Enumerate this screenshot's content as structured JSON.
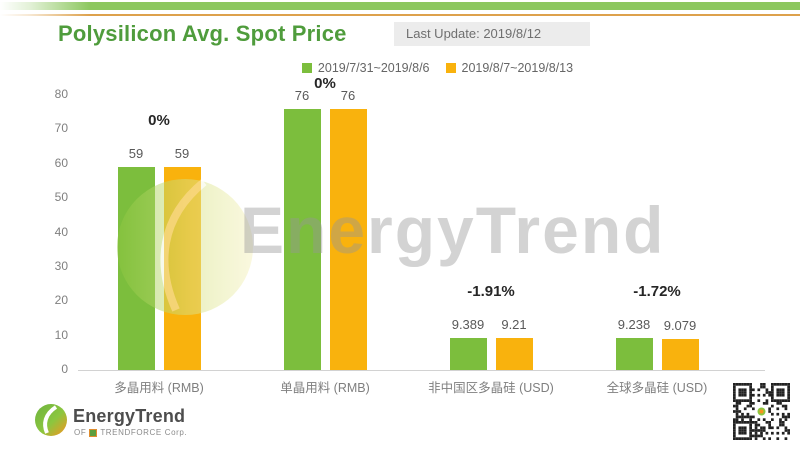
{
  "header": {
    "title": "Polysilicon Avg. Spot Price",
    "last_update": "Last Update: 2019/8/12"
  },
  "chart_data": {
    "type": "bar",
    "title": "Polysilicon Avg. Spot Price",
    "categories": [
      "多晶用料 (RMB)",
      "单晶用料 (RMB)",
      "非中国区多晶硅 (USD)",
      "全球多晶硅 (USD)"
    ],
    "series": [
      {
        "name": "2019/7/31~2019/8/6",
        "color": "#7cbe3d",
        "values": [
          59,
          76,
          9.389,
          9.238
        ],
        "value_labels": [
          "59",
          "76",
          "9.389",
          "9.238"
        ]
      },
      {
        "name": "2019/8/7~2019/8/13",
        "color": "#f9b20d",
        "values": [
          59,
          76,
          9.21,
          9.079
        ],
        "value_labels": [
          "59",
          "76",
          "9.21",
          "9.079"
        ]
      }
    ],
    "change_labels": [
      "0%",
      "0%",
      "-1.91%",
      "-1.72%"
    ],
    "ylim": [
      0,
      80
    ],
    "yticks": [
      0,
      10,
      20,
      30,
      40,
      50,
      60,
      70,
      80
    ],
    "grid": false,
    "legend_position": "top-center"
  },
  "watermark": {
    "text": "EnergyTrend"
  },
  "footer": {
    "brand": "EnergyTrend",
    "sub_prefix": "OF",
    "sub_brand": "TRENDFORCE Corp."
  },
  "colors": {
    "series1": "#7cbe3d",
    "series2": "#f9b20d",
    "title_green": "#4f9c3c",
    "topbar_green": "#8dc75f",
    "topbar_orange": "#dda14c",
    "axis_text": "#7f7f7f",
    "last_update_bg": "#ececec",
    "watermark_gray": "#969696"
  }
}
